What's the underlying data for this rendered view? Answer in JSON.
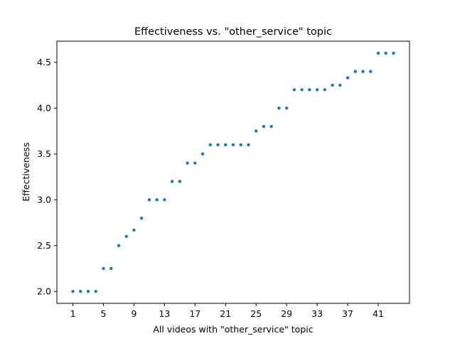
{
  "chart_data": {
    "type": "scatter",
    "title": "Effectiveness vs. \"other_service\" topic",
    "xlabel": "All videos with \"other_service\" topic",
    "ylabel": "Effectiveness",
    "xlim": [
      -1.1,
      45.1
    ],
    "ylim": [
      1.87,
      4.73
    ],
    "xticks": [
      1,
      5,
      9,
      13,
      17,
      21,
      25,
      29,
      33,
      37,
      41
    ],
    "yticks": [
      2.0,
      2.5,
      3.0,
      3.5,
      4.0,
      4.5
    ],
    "ytick_labels": [
      "2.0",
      "2.5",
      "3.0",
      "3.5",
      "4.0",
      "4.5"
    ],
    "grid": false,
    "marker_color": "#1f77b4",
    "x": [
      1,
      2,
      3,
      4,
      5,
      6,
      7,
      8,
      9,
      10,
      11,
      12,
      13,
      14,
      15,
      16,
      17,
      18,
      19,
      20,
      21,
      22,
      23,
      24,
      25,
      26,
      27,
      28,
      29,
      30,
      31,
      32,
      33,
      34,
      35,
      36,
      37,
      38,
      39,
      40,
      41,
      42,
      43
    ],
    "y": [
      2.0,
      2.0,
      2.0,
      2.0,
      2.25,
      2.25,
      2.5,
      2.6,
      2.67,
      2.8,
      3.0,
      3.0,
      3.0,
      3.2,
      3.2,
      3.4,
      3.4,
      3.5,
      3.6,
      3.6,
      3.6,
      3.6,
      3.6,
      3.6,
      3.75,
      3.8,
      3.8,
      4.0,
      4.0,
      4.2,
      4.2,
      4.2,
      4.2,
      4.2,
      4.25,
      4.25,
      4.33,
      4.4,
      4.4,
      4.4,
      4.6,
      4.6,
      4.6
    ]
  }
}
